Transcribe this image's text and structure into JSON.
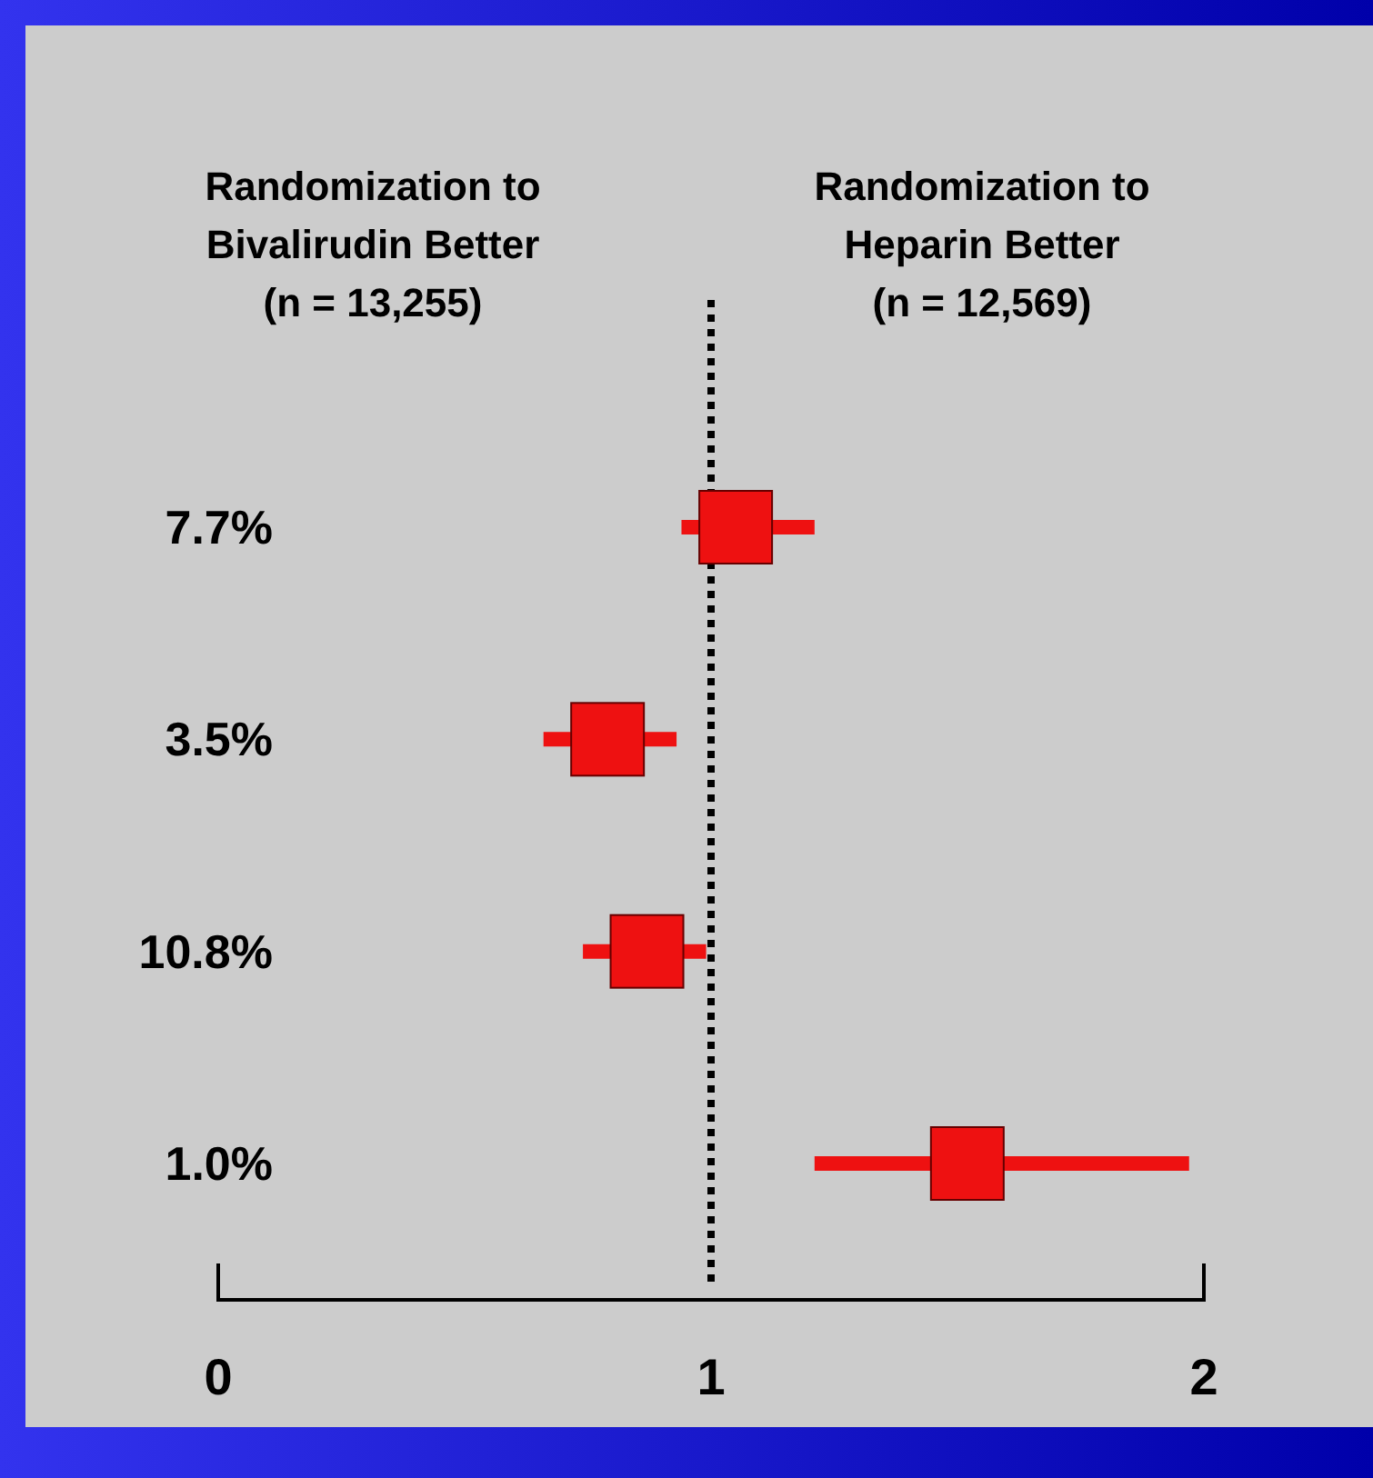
{
  "chart_data": {
    "type": "scatter",
    "orientation": "horizontal",
    "categories": [
      "7.7%",
      "3.5%",
      "10.8%",
      "1.0%"
    ],
    "values": [
      1.05,
      0.79,
      0.87,
      1.52
    ],
    "errors": [
      [
        0.94,
        1.21
      ],
      [
        0.66,
        0.93
      ],
      [
        0.74,
        0.99
      ],
      [
        1.21,
        1.97
      ]
    ],
    "color": "#ee1111",
    "marker": "square",
    "xlim": [
      0,
      2
    ],
    "xticks": [
      0,
      1,
      2
    ],
    "ref_lines": [
      {
        "axis": "x",
        "value": 1,
        "line_style": "dotted",
        "color": "#000000"
      }
    ],
    "annotations": [
      "Randomization to\nBivalirudin Better\n(n = 13,255)",
      "Randomization to\nHeparin Better\n(n = 12,569)"
    ],
    "grid": false
  }
}
